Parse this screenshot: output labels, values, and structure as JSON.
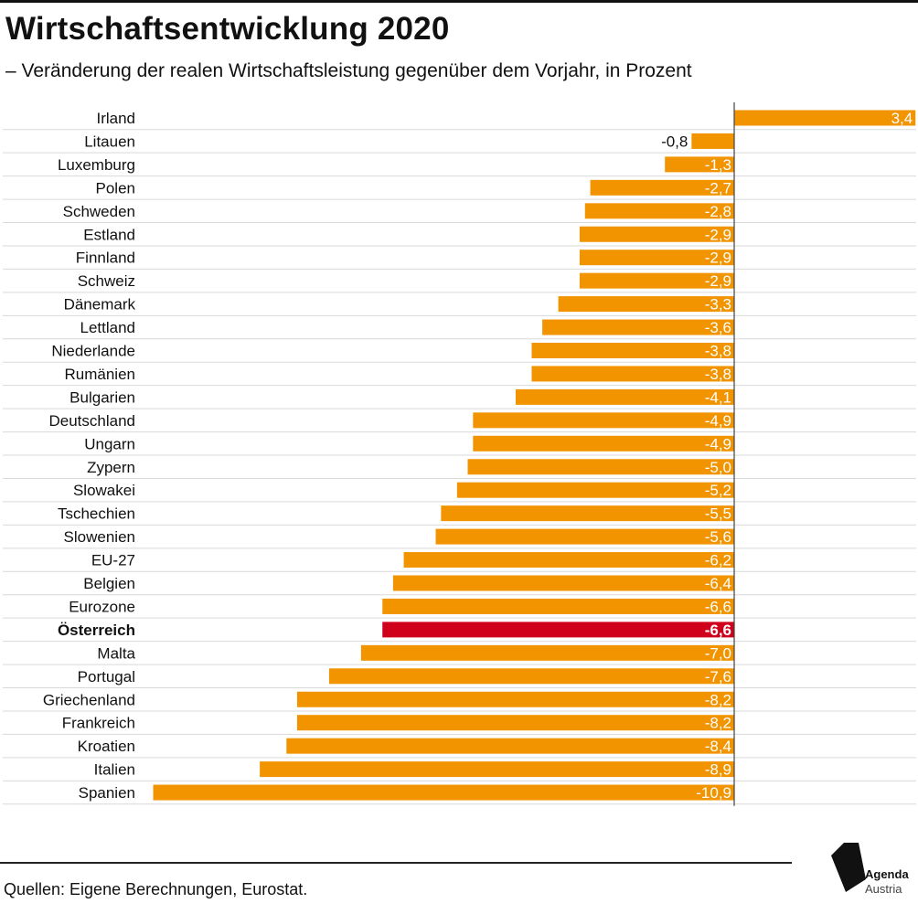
{
  "title": "Wirtschaftsentwicklung 2020",
  "subtitle": "– Veränderung der realen Wirtschaftsleistung gegenüber dem Vorjahr, in Prozent",
  "source": "Quellen: Eigene Berechnungen, Eurostat.",
  "logo": {
    "line1": "Agenda",
    "line2": "Austria"
  },
  "colors": {
    "bar": "#F29400",
    "highlight": "#D0021B",
    "axis": "#444444",
    "grid": "#D9D9D9"
  },
  "chart_data": {
    "type": "bar",
    "orientation": "horizontal",
    "title": "Wirtschaftsentwicklung 2020",
    "xlabel": "",
    "ylabel": "",
    "xlim": [
      -10.9,
      3.4
    ],
    "highlight": "Österreich",
    "categories": [
      "Irland",
      "Litauen",
      "Luxemburg",
      "Polen",
      "Schweden",
      "Estland",
      "Finnland",
      "Schweiz",
      "Dänemark",
      "Lettland",
      "Niederlande",
      "Rumänien",
      "Bulgarien",
      "Deutschland",
      "Ungarn",
      "Zypern",
      "Slowakei",
      "Tschechien",
      "Slowenien",
      "EU-27",
      "Belgien",
      "Eurozone",
      "Österreich",
      "Malta",
      "Portugal",
      "Griechenland",
      "Frankreich",
      "Kroatien",
      "Italien",
      "Spanien"
    ],
    "values": [
      3.4,
      -0.8,
      -1.3,
      -2.7,
      -2.8,
      -2.9,
      -2.9,
      -2.9,
      -3.3,
      -3.6,
      -3.8,
      -3.8,
      -4.1,
      -4.9,
      -4.9,
      -5.0,
      -5.2,
      -5.5,
      -5.6,
      -6.2,
      -6.4,
      -6.6,
      -6.6,
      -7.0,
      -7.6,
      -8.2,
      -8.2,
      -8.4,
      -8.9,
      -10.9
    ],
    "labels": [
      "3,4",
      "-0,8",
      "-1,3",
      "-2,7",
      "-2,8",
      "-2,9",
      "-2,9",
      "-2,9",
      "-3,3",
      "-3,6",
      "-3,8",
      "-3,8",
      "-4,1",
      "-4,9",
      "-4,9",
      "-5,0",
      "-5,2",
      "-5,5",
      "-5,6",
      "-6,2",
      "-6,4",
      "-6,6",
      "-6,6",
      "-7,0",
      "-7,6",
      "-8,2",
      "-8,2",
      "-8,4",
      "-8,9",
      "-10,9"
    ]
  }
}
